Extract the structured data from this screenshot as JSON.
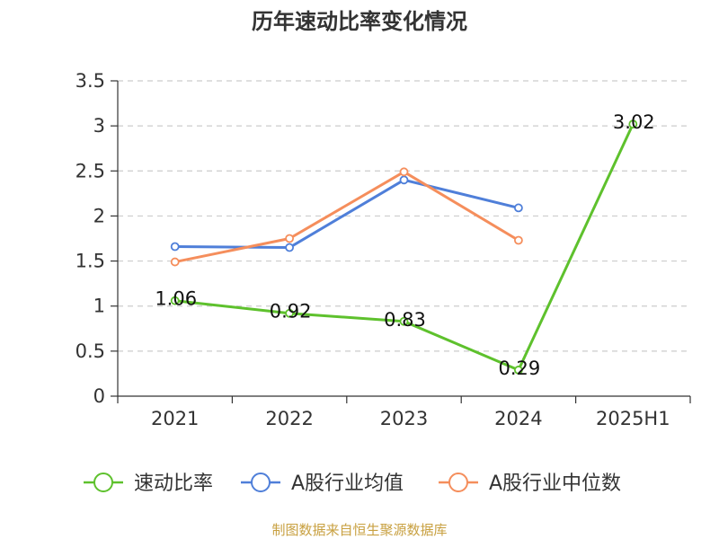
{
  "chart_data": {
    "type": "line",
    "title": "历年速动比率变化情况",
    "categories": [
      "2021",
      "2022",
      "2023",
      "2024",
      "2025H1"
    ],
    "ylim": [
      0,
      3.5
    ],
    "yticks": [
      "0",
      "0.5",
      "1",
      "1.5",
      "2",
      "2.5",
      "3",
      "3.5"
    ],
    "ytick_values": [
      0,
      0.5,
      1,
      1.5,
      2,
      2.5,
      3,
      3.5
    ],
    "grid": true,
    "legend_position": "bottom",
    "series": [
      {
        "name": "速动比率",
        "color": "#5ec12d",
        "values": [
          1.06,
          0.92,
          0.83,
          0.29,
          3.02
        ],
        "labels": [
          "1.06",
          "0.92",
          "0.83",
          "0.29",
          "3.02"
        ]
      },
      {
        "name": "A股行业均值",
        "color": "#4f7fd9",
        "values": [
          1.66,
          1.65,
          2.4,
          2.09,
          null
        ]
      },
      {
        "name": "A股行业中位数",
        "color": "#f58e5c",
        "values": [
          1.49,
          1.75,
          2.49,
          1.73,
          null
        ]
      }
    ],
    "source": "制图数据来自恒生聚源数据库"
  }
}
